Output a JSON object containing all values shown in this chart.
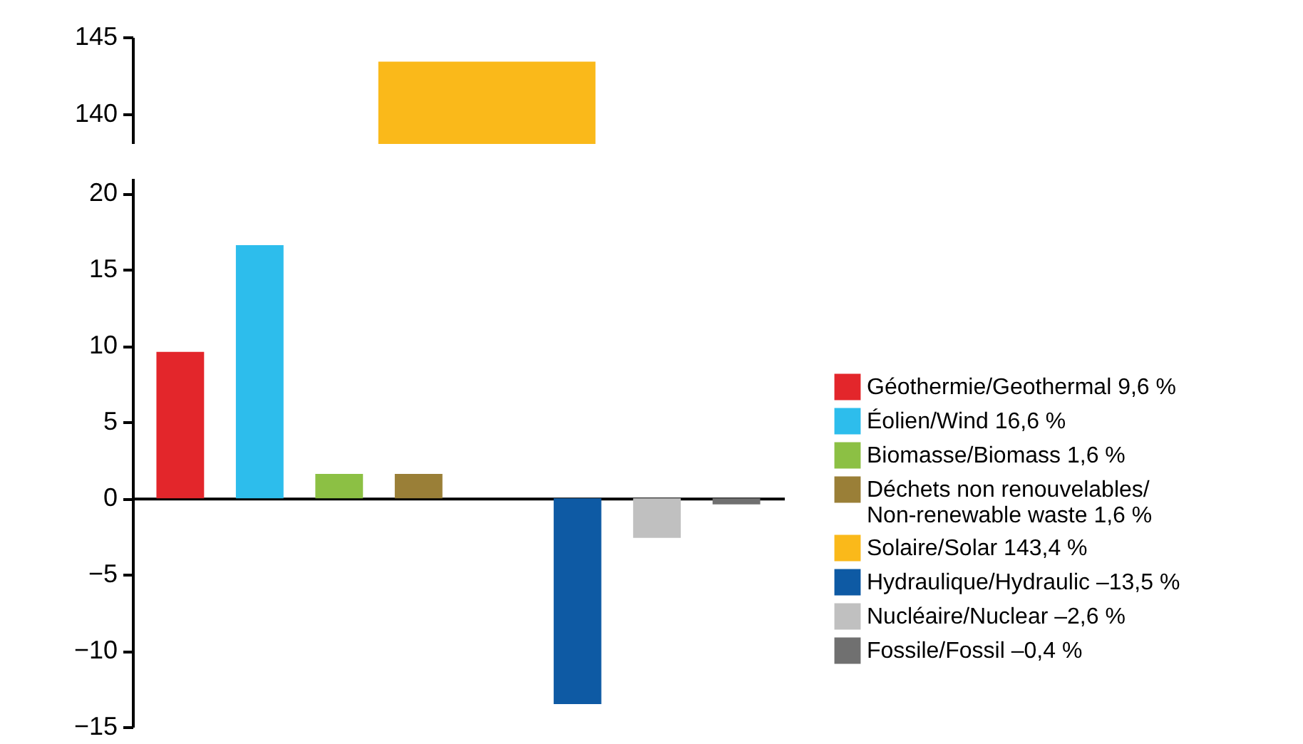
{
  "chart_data": [
    {
      "type": "bar",
      "categories": [
        null
      ],
      "values": [
        143.4
      ],
      "color": "#fab91a",
      "ylim": [
        137,
        145
      ],
      "yticks": [
        140,
        145
      ],
      "tick_labels": "y"
    },
    {
      "type": "bar",
      "categories": [
        null,
        null,
        null,
        null,
        null,
        null,
        null,
        null
      ],
      "series": [
        {
          "name": "Géothermie/Geothermal 9,6 %",
          "color": "#e3262b",
          "values": [
            9.6,
            null,
            null,
            null,
            null,
            null,
            null,
            null
          ]
        },
        {
          "name": "Éolien/Wind 16,6 %",
          "color": "#2dbdec",
          "values": [
            null,
            16.6,
            null,
            null,
            null,
            null,
            null,
            null
          ]
        },
        {
          "name": "Biomasse/Biomass 1,6 %",
          "color": "#8cc044",
          "values": [
            null,
            null,
            1.6,
            null,
            null,
            null,
            null,
            null
          ]
        },
        {
          "name": "Déchets non renouvelables/Non-renewable waste 1,6 %",
          "color": "#9a7f37",
          "values": [
            null,
            null,
            null,
            1.6,
            null,
            null,
            null,
            null
          ]
        },
        {
          "name": "Solaire/Solar 143,4 %",
          "color": "#fab91a",
          "values": [
            null,
            null,
            null,
            null,
            null,
            null,
            null,
            null
          ]
        },
        {
          "name": "Hydraulique/Hydraulic –13,5 %",
          "color": "#0e5aa4",
          "values": [
            null,
            null,
            null,
            null,
            null,
            -13.5,
            null,
            null
          ]
        },
        {
          "name": "Nucléaire/Nuclear –2,6 %",
          "color": "#c0c0c0",
          "values": [
            null,
            null,
            null,
            null,
            null,
            null,
            -2.6,
            null
          ]
        },
        {
          "name": "Fossile/Fossil –0,4 %",
          "color": "#707070",
          "values": [
            null,
            null,
            null,
            null,
            null,
            null,
            null,
            -0.4
          ]
        }
      ],
      "ylim": [
        -15,
        21
      ],
      "yticks": [
        -15,
        -10,
        -5,
        0,
        5,
        10,
        15,
        20
      ],
      "legend": "right",
      "tick_labels": "y"
    }
  ]
}
